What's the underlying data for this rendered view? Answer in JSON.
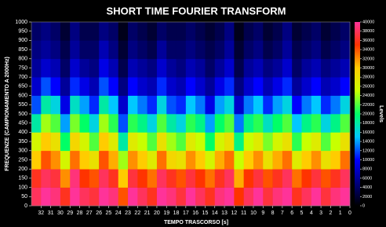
{
  "chart_data": {
    "type": "heatmap",
    "title": "SHORT TIME FOURIER TRANSFORM",
    "x_label": "TEMPO TRASCORSO [s]",
    "y_label": "FREQUENZE (CAMPIONAMENTO A 2000Hz)",
    "colorbar_label": "Levels",
    "xlim": [
      33,
      0
    ],
    "xticks": [
      32,
      31,
      30,
      29,
      28,
      27,
      26,
      25,
      24,
      23,
      22,
      21,
      20,
      19,
      18,
      17,
      16,
      15,
      14,
      13,
      12,
      11,
      10,
      9,
      8,
      7,
      6,
      5,
      4,
      3,
      2,
      1,
      0
    ],
    "ylim": [
      0,
      1000
    ],
    "yticks": [
      0,
      50,
      100,
      150,
      200,
      250,
      300,
      350,
      400,
      450,
      500,
      550,
      600,
      650,
      700,
      750,
      800,
      850,
      900,
      950,
      1000
    ],
    "clim": [
      0,
      40000
    ],
    "cticks": [
      0,
      2000,
      4000,
      6000,
      8000,
      10000,
      12000,
      14000,
      16000,
      18000,
      20000,
      22000,
      24000,
      26000,
      28000,
      30000,
      32000,
      34000,
      36000,
      38000,
      40000
    ],
    "colorscale": [
      "#000000",
      "#000080",
      "#0000ff",
      "#00c8ff",
      "#00ff66",
      "#c8ff00",
      "#ffcc00",
      "#ff3300",
      "#ff3399"
    ],
    "xbins": [
      33,
      32,
      31,
      30,
      29,
      28,
      27,
      26,
      25,
      24,
      23,
      22,
      21,
      20,
      19,
      18,
      17,
      16,
      15,
      14,
      13,
      12,
      11,
      10,
      9,
      8,
      7,
      6,
      5,
      4,
      3,
      2,
      1,
      0
    ],
    "ybins": [
      0,
      100,
      200,
      300,
      400,
      500,
      600,
      700,
      800,
      900,
      1000
    ],
    "values": [
      [
        38000,
        40000,
        39000,
        36000,
        40000,
        38000,
        37000,
        40000,
        39000,
        34000,
        40000,
        38000,
        36000,
        40000,
        39000,
        37000,
        40000,
        38000,
        36000,
        39000,
        40000,
        35000,
        38000,
        40000,
        37000,
        39000,
        40000,
        36000,
        38000,
        40000,
        37000,
        39000,
        40000
      ],
      [
        36000,
        38000,
        37000,
        32000,
        39000,
        35000,
        34000,
        38000,
        36000,
        30000,
        37000,
        35000,
        33000,
        38000,
        36000,
        34000,
        37000,
        35000,
        33000,
        36000,
        38000,
        31000,
        35000,
        37000,
        34000,
        36000,
        38000,
        33000,
        35000,
        37000,
        34000,
        36000,
        38000
      ],
      [
        30000,
        34000,
        32000,
        26000,
        33000,
        30000,
        28000,
        34000,
        31000,
        24000,
        32000,
        30000,
        27000,
        33000,
        29000,
        28000,
        32000,
        30000,
        26000,
        31000,
        33000,
        25000,
        30000,
        32000,
        28000,
        31000,
        33000,
        27000,
        30000,
        32000,
        28000,
        30000,
        33000
      ],
      [
        26000,
        30000,
        28000,
        20000,
        29000,
        26000,
        22000,
        30000,
        27000,
        18000,
        27000,
        25000,
        22000,
        28000,
        24000,
        22000,
        27000,
        25000,
        20000,
        26000,
        28000,
        19000,
        25000,
        27000,
        23000,
        26000,
        28000,
        21000,
        25000,
        27000,
        22000,
        25000,
        28000
      ],
      [
        18000,
        24000,
        22000,
        14000,
        23000,
        20000,
        16000,
        24000,
        21000,
        12000,
        21000,
        19000,
        16000,
        22000,
        18000,
        16000,
        21000,
        19000,
        14000,
        20000,
        22000,
        13000,
        19000,
        21000,
        17000,
        20000,
        22000,
        15000,
        19000,
        21000,
        16000,
        19000,
        22000
      ],
      [
        12000,
        18000,
        16000,
        9000,
        17000,
        14000,
        11000,
        18000,
        15000,
        8000,
        15000,
        13000,
        11000,
        16000,
        12000,
        11000,
        15000,
        13000,
        9000,
        14000,
        16000,
        8000,
        13000,
        15000,
        11000,
        14000,
        16000,
        10000,
        13000,
        15000,
        11000,
        13000,
        16000
      ],
      [
        8000,
        12000,
        10000,
        6000,
        11000,
        9000,
        7000,
        12000,
        10000,
        5000,
        10000,
        8000,
        7000,
        11000,
        8000,
        7000,
        10000,
        8000,
        6000,
        9000,
        11000,
        5000,
        8000,
        10000,
        7000,
        9000,
        11000,
        6000,
        8000,
        10000,
        7000,
        8000,
        10000
      ],
      [
        6000,
        8000,
        7000,
        4000,
        8000,
        6000,
        5000,
        9000,
        7000,
        3000,
        7000,
        6000,
        5000,
        8000,
        6000,
        5000,
        7000,
        6000,
        4000,
        6000,
        8000,
        3000,
        6000,
        7000,
        5000,
        6000,
        8000,
        4000,
        6000,
        7000,
        5000,
        6000,
        7000
      ],
      [
        5000,
        6000,
        5000,
        3000,
        6000,
        4000,
        4000,
        7000,
        5000,
        2000,
        5000,
        4000,
        3000,
        6000,
        4000,
        4000,
        5000,
        4000,
        3000,
        4000,
        6000,
        2000,
        4000,
        5000,
        3000,
        4000,
        6000,
        3000,
        4000,
        5000,
        3000,
        4000,
        5000
      ],
      [
        4000,
        5000,
        4000,
        2000,
        5000,
        3000,
        3000,
        5000,
        4000,
        1000,
        4000,
        3000,
        2000,
        4000,
        3000,
        3000,
        4000,
        3000,
        2000,
        3000,
        5000,
        1000,
        3000,
        4000,
        2000,
        3000,
        5000,
        2000,
        3000,
        4000,
        2000,
        3000,
        4000
      ]
    ]
  }
}
